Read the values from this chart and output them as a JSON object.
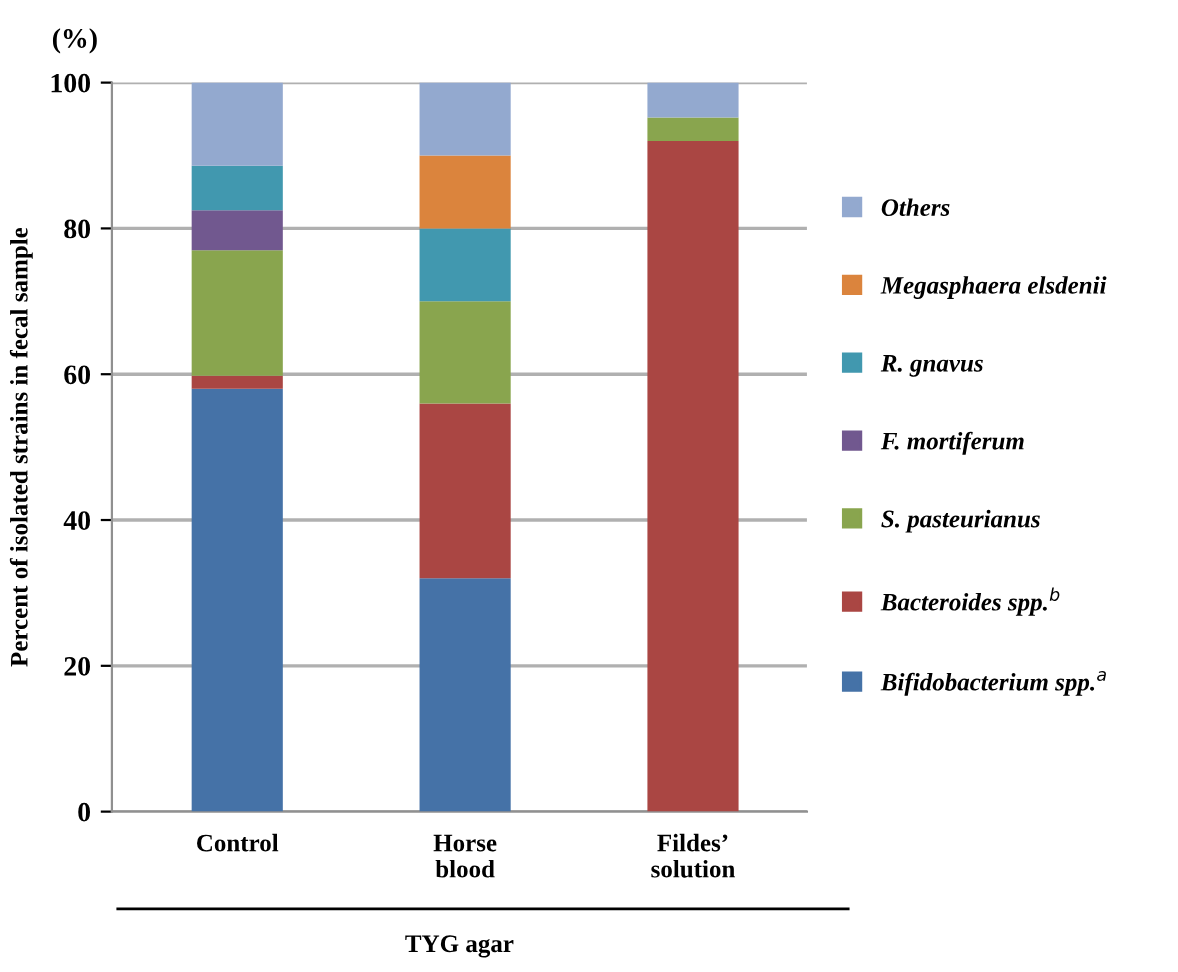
{
  "chart_data": {
    "type": "bar",
    "stacked": true,
    "categories": [
      "Control",
      "Horse\nblood",
      "Fildes’\nsolution"
    ],
    "xlabel": "TYG agar",
    "ylabel": "Percent of isolated strains in fecal sample",
    "annotations": [
      "(%)"
    ],
    "ylim": [
      0,
      100
    ],
    "yticks": [
      0,
      20,
      40,
      60,
      80,
      100
    ],
    "grid": "y",
    "legend": "right",
    "series": [
      {
        "name": "Bifidobacterium spp.$^{a}$",
        "color": "#4572a7",
        "values": [
          58,
          32,
          0
        ]
      },
      {
        "name": "Bacteroides spp.$^{b}$",
        "color": "#aa4643",
        "values": [
          1.8,
          24,
          92
        ]
      },
      {
        "name": "S. pasteurianus",
        "color": "#89a54e",
        "values": [
          17.2,
          14,
          3.2
        ]
      },
      {
        "name": "F. mortiferum",
        "color": "#71588f",
        "values": [
          5.5,
          0,
          0
        ]
      },
      {
        "name": "R. gnavus",
        "color": "#4198af",
        "values": [
          6.1,
          10,
          0
        ]
      },
      {
        "name": "Megasphaera elsdenii",
        "color": "#db843d",
        "values": [
          0,
          10,
          0
        ]
      },
      {
        "name": "Others",
        "color": "#93a9cf",
        "values": [
          11.4,
          10,
          4.8
        ]
      }
    ]
  }
}
